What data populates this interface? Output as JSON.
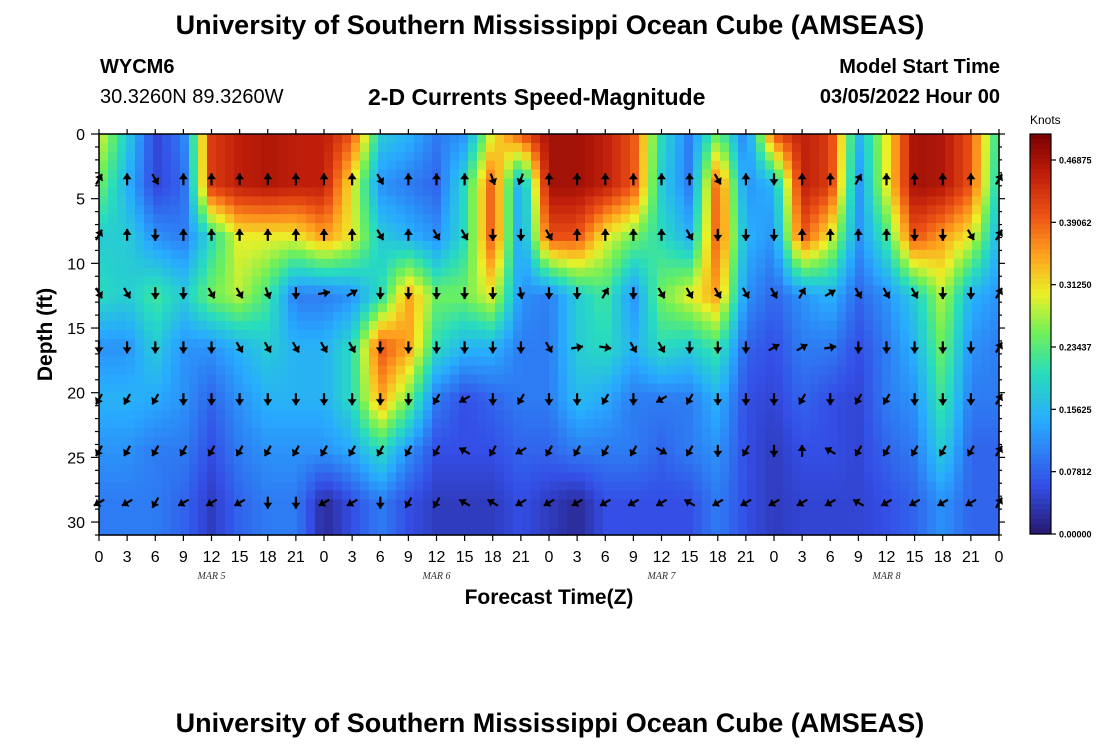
{
  "header": {
    "title": "University of Southern Mississippi Ocean Cube (AMSEAS)",
    "station": "WYCM6",
    "coords": "30.3260N  89.3260W",
    "subtitle": "2-D Currents Speed-Magnitude",
    "model_start_label": "Model Start Time",
    "model_start_value": "03/05/2022 Hour 00",
    "footer_title": "University of Southern Mississippi Ocean Cube (AMSEAS)"
  },
  "chart_data": {
    "type": "heatmap",
    "title": "2-D Currents Speed-Magnitude",
    "xlabel": "Forecast Time(Z)",
    "ylabel": "Depth (ft)",
    "x_tick_labels": [
      "0",
      "3",
      "6",
      "9",
      "12",
      "15",
      "18",
      "21",
      "0",
      "3",
      "6",
      "9",
      "12",
      "15",
      "18",
      "21",
      "0",
      "3",
      "6",
      "9",
      "12",
      "15",
      "18",
      "21",
      "0",
      "3",
      "6",
      "9",
      "12",
      "15",
      "18",
      "21",
      "0"
    ],
    "day_labels": [
      {
        "label": "MAR 5",
        "hour": 12
      },
      {
        "label": "MAR 6",
        "hour": 36
      },
      {
        "label": "MAR 7",
        "hour": 60
      },
      {
        "label": "MAR 8",
        "hour": 84
      }
    ],
    "xlim_hours": [
      0,
      96
    ],
    "y_ticks": [
      0,
      5,
      10,
      15,
      20,
      25,
      30
    ],
    "ylim": [
      0,
      31
    ],
    "y_inverted": true,
    "colorbar": {
      "label": "Knots",
      "ticks": [
        "0.46875",
        "0.39062",
        "0.31250",
        "0.23437",
        "0.15625",
        "0.07812",
        "0.00000"
      ],
      "range": [
        0,
        0.5
      ]
    },
    "depths": [
      0,
      4,
      8,
      12.5,
      16.5,
      20.5,
      24.5,
      28.5,
      31
    ],
    "hours": [
      0,
      3,
      6,
      9,
      12,
      15,
      18,
      21,
      24,
      27,
      30,
      33,
      36,
      39,
      42,
      45,
      48,
      51,
      54,
      57,
      60,
      63,
      66,
      69,
      72,
      75,
      78,
      81,
      84,
      87,
      90,
      93,
      96
    ],
    "speed": [
      [
        0.3,
        0.18,
        0.05,
        0.1,
        0.42,
        0.45,
        0.46,
        0.45,
        0.45,
        0.4,
        0.18,
        0.15,
        0.1,
        0.12,
        0.3,
        0.4,
        0.47,
        0.47,
        0.45,
        0.4,
        0.2,
        0.1,
        0.25,
        0.1,
        0.4,
        0.45,
        0.42,
        0.15,
        0.3,
        0.47,
        0.46,
        0.4,
        0.2
      ],
      [
        0.25,
        0.15,
        0.05,
        0.08,
        0.42,
        0.45,
        0.46,
        0.45,
        0.45,
        0.3,
        0.12,
        0.1,
        0.08,
        0.2,
        0.4,
        0.12,
        0.47,
        0.47,
        0.45,
        0.4,
        0.18,
        0.1,
        0.4,
        0.12,
        0.15,
        0.45,
        0.42,
        0.12,
        0.3,
        0.47,
        0.46,
        0.4,
        0.18
      ],
      [
        0.18,
        0.18,
        0.12,
        0.1,
        0.2,
        0.3,
        0.3,
        0.3,
        0.35,
        0.3,
        0.18,
        0.15,
        0.12,
        0.2,
        0.4,
        0.12,
        0.4,
        0.4,
        0.3,
        0.25,
        0.2,
        0.15,
        0.4,
        0.15,
        0.12,
        0.4,
        0.3,
        0.12,
        0.22,
        0.4,
        0.35,
        0.3,
        0.15
      ],
      [
        0.2,
        0.18,
        0.22,
        0.18,
        0.25,
        0.28,
        0.22,
        0.1,
        0.1,
        0.12,
        0.2,
        0.35,
        0.25,
        0.25,
        0.3,
        0.12,
        0.1,
        0.18,
        0.22,
        0.12,
        0.25,
        0.3,
        0.35,
        0.12,
        0.08,
        0.12,
        0.15,
        0.08,
        0.12,
        0.18,
        0.28,
        0.15,
        0.12
      ],
      [
        0.12,
        0.12,
        0.18,
        0.12,
        0.12,
        0.15,
        0.18,
        0.15,
        0.15,
        0.2,
        0.4,
        0.35,
        0.2,
        0.15,
        0.15,
        0.1,
        0.1,
        0.18,
        0.2,
        0.15,
        0.2,
        0.18,
        0.22,
        0.08,
        0.06,
        0.1,
        0.1,
        0.06,
        0.1,
        0.15,
        0.25,
        0.12,
        0.1
      ],
      [
        0.15,
        0.15,
        0.14,
        0.12,
        0.08,
        0.12,
        0.15,
        0.15,
        0.15,
        0.2,
        0.35,
        0.25,
        0.1,
        0.06,
        0.08,
        0.1,
        0.1,
        0.16,
        0.14,
        0.1,
        0.1,
        0.1,
        0.15,
        0.06,
        0.05,
        0.08,
        0.06,
        0.05,
        0.1,
        0.12,
        0.22,
        0.1,
        0.1
      ],
      [
        0.12,
        0.12,
        0.1,
        0.1,
        0.06,
        0.1,
        0.12,
        0.12,
        0.12,
        0.14,
        0.2,
        0.12,
        0.06,
        0.06,
        0.06,
        0.08,
        0.08,
        0.1,
        0.1,
        0.1,
        0.08,
        0.1,
        0.12,
        0.06,
        0.04,
        0.06,
        0.06,
        0.05,
        0.08,
        0.1,
        0.18,
        0.08,
        0.08
      ],
      [
        0.1,
        0.1,
        0.1,
        0.08,
        0.04,
        0.08,
        0.1,
        0.1,
        0.02,
        0.06,
        0.1,
        0.06,
        0.04,
        0.04,
        0.04,
        0.06,
        0.04,
        0.02,
        0.06,
        0.06,
        0.06,
        0.06,
        0.1,
        0.06,
        0.04,
        0.05,
        0.05,
        0.05,
        0.06,
        0.08,
        0.12,
        0.08,
        0.08
      ],
      [
        0.1,
        0.1,
        0.1,
        0.08,
        0.04,
        0.08,
        0.1,
        0.1,
        0.02,
        0.06,
        0.1,
        0.06,
        0.04,
        0.04,
        0.04,
        0.06,
        0.04,
        0.02,
        0.06,
        0.06,
        0.06,
        0.06,
        0.1,
        0.06,
        0.04,
        0.05,
        0.05,
        0.05,
        0.06,
        0.08,
        0.12,
        0.08,
        0.08
      ]
    ],
    "arrow_depths": [
      3.5,
      7.8,
      12.3,
      16.5,
      20.5,
      24.5,
      28.5
    ],
    "arrows": [
      [
        30,
        0,
        150,
        0,
        0,
        0,
        0,
        0,
        0,
        0,
        150,
        0,
        0,
        0,
        160,
        200,
        0,
        0,
        0,
        0,
        0,
        0,
        150,
        0,
        180,
        0,
        0,
        30,
        0,
        0,
        0,
        0,
        30
      ],
      [
        30,
        0,
        180,
        0,
        0,
        0,
        0,
        0,
        0,
        0,
        150,
        0,
        150,
        150,
        180,
        180,
        150,
        0,
        0,
        0,
        0,
        150,
        180,
        180,
        180,
        0,
        0,
        0,
        0,
        180,
        180,
        150,
        30
      ],
      [
        150,
        150,
        180,
        180,
        150,
        150,
        160,
        180,
        80,
        60,
        180,
        180,
        180,
        180,
        180,
        170,
        180,
        180,
        30,
        180,
        150,
        150,
        150,
        150,
        150,
        30,
        60,
        150,
        150,
        150,
        180,
        180,
        30
      ],
      [
        180,
        180,
        180,
        180,
        180,
        150,
        150,
        150,
        150,
        150,
        180,
        180,
        180,
        180,
        180,
        180,
        150,
        80,
        100,
        150,
        150,
        180,
        180,
        180,
        60,
        60,
        80,
        180,
        180,
        180,
        180,
        180,
        30
      ],
      [
        210,
        210,
        210,
        180,
        180,
        180,
        180,
        180,
        180,
        180,
        180,
        180,
        210,
        240,
        180,
        210,
        180,
        180,
        210,
        180,
        240,
        210,
        180,
        180,
        180,
        210,
        180,
        210,
        210,
        180,
        180,
        180,
        30
      ],
      [
        210,
        210,
        210,
        210,
        210,
        210,
        210,
        210,
        210,
        210,
        210,
        210,
        210,
        300,
        210,
        240,
        210,
        210,
        210,
        210,
        120,
        210,
        180,
        210,
        180,
        0,
        300,
        210,
        210,
        210,
        210,
        210,
        30
      ],
      [
        240,
        240,
        210,
        240,
        240,
        240,
        180,
        180,
        240,
        240,
        180,
        210,
        210,
        300,
        300,
        240,
        240,
        240,
        240,
        240,
        240,
        300,
        240,
        240,
        240,
        240,
        240,
        300,
        240,
        240,
        240,
        240,
        30
      ]
    ]
  }
}
